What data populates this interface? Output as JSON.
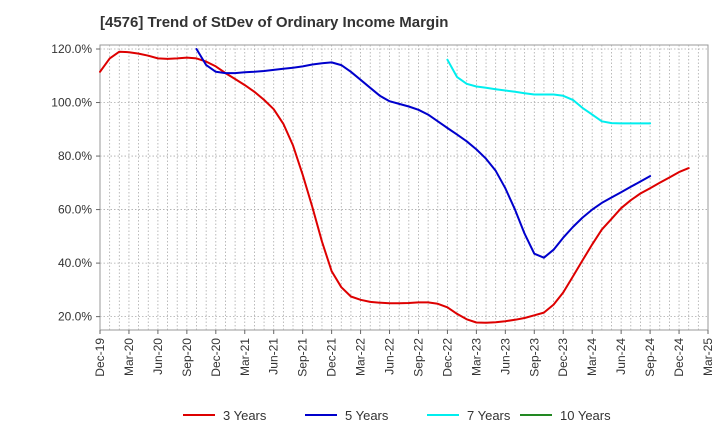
{
  "chart_data": {
    "type": "line",
    "title": "[4576]  Trend of StDev of Ordinary Income Margin",
    "xlabel": "",
    "ylabel": "",
    "x_tick_labels": [
      "Dec-19",
      "Mar-20",
      "Jun-20",
      "Sep-20",
      "Dec-20",
      "Mar-21",
      "Jun-21",
      "Sep-21",
      "Dec-21",
      "Mar-22",
      "Jun-22",
      "Sep-22",
      "Dec-22",
      "Mar-23",
      "Jun-23",
      "Sep-23",
      "Dec-23",
      "Mar-24",
      "Jun-24",
      "Sep-24",
      "Dec-24",
      "Mar-25"
    ],
    "y_tick_labels": [
      "20.0%",
      "40.0%",
      "60.0%",
      "80.0%",
      "100.0%",
      "120.0%"
    ],
    "y_ticks": [
      20,
      40,
      60,
      80,
      100,
      120
    ],
    "ylim": [
      15,
      121.5
    ],
    "x_range_months": [
      0,
      63
    ],
    "grid": "dotted vertical and horizontal",
    "legend_position": "bottom",
    "series": [
      {
        "name": "3 Years",
        "color": "#dd0000",
        "points": [
          [
            0,
            111.5
          ],
          [
            1,
            116.5
          ],
          [
            2,
            119
          ],
          [
            3,
            118.8
          ],
          [
            4,
            118.3
          ],
          [
            5,
            117.5
          ],
          [
            6,
            116.5
          ],
          [
            7,
            116.3
          ],
          [
            8,
            116.5
          ],
          [
            9,
            116.8
          ],
          [
            10,
            116.5
          ],
          [
            11,
            115.3
          ],
          [
            12,
            113.5
          ],
          [
            13,
            111
          ],
          [
            14,
            108.8
          ],
          [
            15,
            106.5
          ],
          [
            16,
            104
          ],
          [
            17,
            101
          ],
          [
            18,
            97.5
          ],
          [
            19,
            92
          ],
          [
            20,
            84
          ],
          [
            21,
            73
          ],
          [
            22,
            61
          ],
          [
            23,
            48
          ],
          [
            24,
            37
          ],
          [
            25,
            31
          ],
          [
            26,
            27.5
          ],
          [
            27,
            26.3
          ],
          [
            28,
            25.5
          ],
          [
            29,
            25.2
          ],
          [
            30,
            25
          ],
          [
            31,
            25
          ],
          [
            32,
            25.1
          ],
          [
            33,
            25.3
          ],
          [
            34,
            25.3
          ],
          [
            35,
            24.8
          ],
          [
            36,
            23.5
          ],
          [
            37,
            21
          ],
          [
            38,
            19
          ],
          [
            39,
            17.8
          ],
          [
            40,
            17.7
          ],
          [
            41,
            17.9
          ],
          [
            42,
            18.3
          ],
          [
            43,
            18.8
          ],
          [
            44,
            19.5
          ],
          [
            45,
            20.5
          ],
          [
            46,
            21.5
          ],
          [
            47,
            24.5
          ],
          [
            48,
            29
          ],
          [
            49,
            35
          ],
          [
            50,
            41
          ],
          [
            51,
            47
          ],
          [
            52,
            52.5
          ],
          [
            53,
            56.5
          ],
          [
            54,
            60.5
          ],
          [
            55,
            63.5
          ],
          [
            56,
            66
          ],
          [
            57,
            68
          ],
          [
            58,
            70
          ],
          [
            59,
            72
          ],
          [
            60,
            74
          ],
          [
            61,
            75.5
          ]
        ]
      },
      {
        "name": "5 Years",
        "color": "#0000cc",
        "points": [
          [
            10,
            120
          ],
          [
            11,
            114
          ],
          [
            12,
            111.5
          ],
          [
            13,
            111
          ],
          [
            14,
            111
          ],
          [
            15,
            111.3
          ],
          [
            16,
            111.5
          ],
          [
            17,
            111.8
          ],
          [
            18,
            112.2
          ],
          [
            19,
            112.6
          ],
          [
            20,
            113
          ],
          [
            21,
            113.5
          ],
          [
            22,
            114.2
          ],
          [
            23,
            114.7
          ],
          [
            24,
            115
          ],
          [
            25,
            114
          ],
          [
            26,
            111.5
          ],
          [
            27,
            108.5
          ],
          [
            28,
            105.5
          ],
          [
            29,
            102.5
          ],
          [
            30,
            100.5
          ],
          [
            31,
            99.5
          ],
          [
            32,
            98.5
          ],
          [
            33,
            97.3
          ],
          [
            34,
            95.5
          ],
          [
            35,
            93
          ],
          [
            36,
            90.5
          ],
          [
            37,
            88
          ],
          [
            38,
            85.5
          ],
          [
            39,
            82.5
          ],
          [
            40,
            79
          ],
          [
            41,
            74.5
          ],
          [
            42,
            68
          ],
          [
            43,
            60
          ],
          [
            44,
            51
          ],
          [
            45,
            43.5
          ],
          [
            46,
            42
          ],
          [
            47,
            45
          ],
          [
            48,
            49.5
          ],
          [
            49,
            53.5
          ],
          [
            50,
            57
          ],
          [
            51,
            60
          ],
          [
            52,
            62.5
          ],
          [
            53,
            64.5
          ],
          [
            54,
            66.5
          ],
          [
            55,
            68.5
          ],
          [
            56,
            70.5
          ],
          [
            57,
            72.5
          ]
        ]
      },
      {
        "name": "7 Years",
        "color": "#00eeee",
        "points": [
          [
            36,
            116
          ],
          [
            37,
            109.5
          ],
          [
            38,
            107
          ],
          [
            39,
            106
          ],
          [
            40,
            105.5
          ],
          [
            41,
            105
          ],
          [
            42,
            104.5
          ],
          [
            43,
            104
          ],
          [
            44,
            103.5
          ],
          [
            45,
            103
          ],
          [
            46,
            103
          ],
          [
            47,
            103
          ],
          [
            48,
            102.5
          ],
          [
            49,
            101
          ],
          [
            50,
            98
          ],
          [
            51,
            95.5
          ],
          [
            52,
            93
          ],
          [
            53,
            92.3
          ],
          [
            54,
            92.2
          ],
          [
            55,
            92.2
          ],
          [
            56,
            92.2
          ],
          [
            57,
            92.2
          ]
        ]
      },
      {
        "name": "10 Years",
        "color": "#228822",
        "points": []
      }
    ]
  }
}
